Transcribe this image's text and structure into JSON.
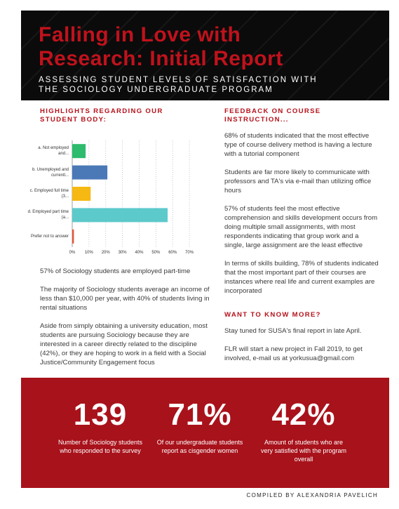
{
  "header": {
    "title": "Falling in Love with Research: Initial Report",
    "subtitle": "ASSESSING STUDENT LEVELS OF SATISFACTION WITH THE SOCIOLOGY UNDERGRADUATE PROGRAM"
  },
  "highlights": {
    "heading": "HIGHLIGHTS REGARDING OUR STUDENT BODY:",
    "paragraphs": [
      "57% of Sociology students are employed part-time",
      "The majority of Sociology students average an income of less than $10,000 per year, with 40% of students living in rental situations",
      "Aside from simply obtaining a university education, most students are pursuing Sociology because they are interested in a career directly related to the discipline (42%), or they are hoping to work in a field with a Social Justice/Community Engagement focus"
    ]
  },
  "chart_data": {
    "type": "bar",
    "orientation": "horizontal",
    "categories": [
      "a. Not employed and...",
      "b. Unemployed and currentl...",
      "c. Employed full time (3...",
      "d. Employed part time (a...",
      "Prefer not to answer"
    ],
    "values": [
      8,
      21,
      11,
      57,
      1
    ],
    "colors": [
      "#2dbb6e",
      "#4b79b8",
      "#f6b812",
      "#5cc9cb",
      "#e5553a"
    ],
    "xlim": [
      0,
      75
    ],
    "xticks": [
      {
        "value": 0,
        "label": "0%"
      },
      {
        "value": 10,
        "label": "10%"
      },
      {
        "value": 20,
        "label": "20%"
      },
      {
        "value": 30,
        "label": "30%"
      },
      {
        "value": 40,
        "label": "40%"
      },
      {
        "value": 50,
        "label": "50%"
      },
      {
        "value": 60,
        "label": "60%"
      },
      {
        "value": 70,
        "label": "70%"
      }
    ],
    "grid": true
  },
  "feedback": {
    "heading": "FEEDBACK ON COURSE INSTRUCTION...",
    "paragraphs": [
      "68% of students indicated that the most effective type of course delivery method is having a lecture with a tutorial component",
      "Students are far more likely to communicate with professors and TA's via e-mail than utilizing office hours",
      "57% of students feel the most effective comprehension and skills development occurs from doing multiple small assignments, with most respondents indicating that group work and a single, large assignment are the least effective",
      "In terms of skills building, 78% of students indicated that the most important part of their courses are instances where real life and current examples are incorporated"
    ]
  },
  "more": {
    "heading": "WANT TO KNOW MORE?",
    "paragraphs": [
      "Stay tuned for SUSA's final report in late April.",
      "FLR will start a new project in Fall 2019, to get involved, e-mail us at yorkusua@gmail.com"
    ]
  },
  "stats": [
    {
      "number": "139",
      "caption": "Number of Sociology students who responded to the survey"
    },
    {
      "number": "71%",
      "caption": "Of our undergraduate students report as cisgender women"
    },
    {
      "number": "42%",
      "caption": "Amount of students who are very satisfied with the program overall"
    }
  ],
  "footer": "COMPILED BY ALEXANDRIA PAVELICH"
}
